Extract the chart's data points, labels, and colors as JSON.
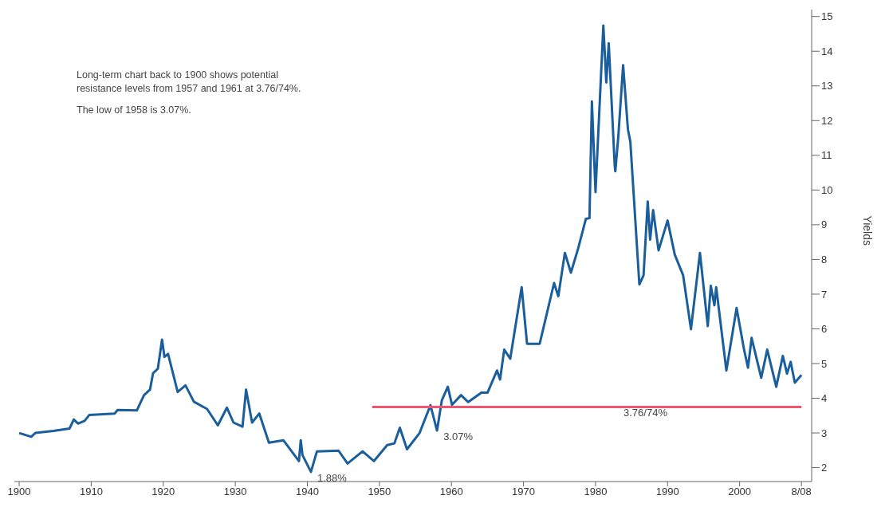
{
  "chart_data": {
    "type": "line",
    "ylabel": "Yields",
    "annotations": [
      "Long-term chart back to 1900 shows potential\nresistance levels from 1957 and 1961 at 3.76/74%.",
      "The low of 1958 is 3.07%.",
      {
        "text": "1.88%",
        "x": "1940-07",
        "y": 1.88
      },
      {
        "text": "3.07%",
        "x": "1958-01",
        "y": 3.07
      },
      {
        "text": "3.76/74%",
        "x": "1983-01",
        "y": 3.75
      }
    ],
    "series": [
      {
        "color": "#1a5e9c",
        "x": [
          "1900-01",
          "1901-09",
          "1902-04",
          "1904-10",
          "1907-01",
          "1907-08",
          "1908-03",
          "1909-02",
          "1909-10",
          "1913-04",
          "1913-09",
          "1916-05",
          "1917-05",
          "1918-03",
          "1918-08",
          "1919-04",
          "1919-11",
          "1920-03",
          "1920-09",
          "1922-01",
          "1923-02",
          "1924-04",
          "1926-02",
          "1927-08",
          "1928-11",
          "1929-10",
          "1931-01",
          "1931-07",
          "1932-05",
          "1933-05",
          "1934-09",
          "1936-09",
          "1938-11",
          "1939-02",
          "1939-05",
          "1940-07",
          "1941-05",
          "1944-05",
          "1945-08",
          "1947-09",
          "1949-04",
          "1951-02",
          "1952-02",
          "1952-11",
          "1953-11",
          "1955-08",
          "1957-02",
          "1958-01",
          "1958-09",
          "1959-07",
          "1960-02",
          "1961-05",
          "1962-05",
          "1964-03",
          "1965-01",
          "1966-05",
          "1966-10",
          "1967-05",
          "1968-03",
          "1969-10",
          "1970-07",
          "1972-04",
          "1974-04",
          "1974-11",
          "1975-10",
          "1976-08",
          "1977-08",
          "1978-09",
          "1979-03",
          "1979-07",
          "1980-01",
          "1981-02",
          "1981-07",
          "1981-11",
          "1982-09",
          "1982-10",
          "1983-03",
          "1983-11",
          "1984-07",
          "1984-11",
          "1986-02",
          "1986-09",
          "1987-04",
          "1987-08",
          "1988-01",
          "1988-10",
          "1990-01",
          "1991-01",
          "1992-03",
          "1993-04",
          "1994-07",
          "1995-08",
          "1996-01",
          "1996-07",
          "1996-10",
          "1998-03",
          "1999-08",
          "2000-08",
          "2001-03",
          "2001-09",
          "2003-01",
          "2003-11",
          "2005-02",
          "2006-01",
          "2006-08",
          "2007-02",
          "2007-09",
          "2008-08"
        ],
        "values": [
          3.0,
          2.89,
          3.0,
          3.06,
          3.13,
          3.39,
          3.27,
          3.35,
          3.52,
          3.56,
          3.66,
          3.65,
          4.09,
          4.25,
          4.72,
          4.85,
          5.69,
          5.19,
          5.28,
          4.18,
          4.37,
          3.9,
          3.69,
          3.22,
          3.73,
          3.3,
          3.18,
          4.25,
          3.3,
          3.56,
          2.72,
          2.79,
          2.19,
          2.79,
          2.36,
          1.88,
          2.47,
          2.49,
          2.12,
          2.47,
          2.19,
          2.65,
          2.7,
          3.15,
          2.53,
          3.0,
          3.8,
          3.07,
          3.94,
          4.33,
          3.81,
          4.09,
          3.89,
          4.16,
          4.16,
          4.8,
          4.54,
          5.4,
          5.14,
          7.2,
          5.57,
          5.57,
          7.32,
          6.94,
          8.19,
          7.62,
          8.31,
          9.17,
          9.19,
          12.55,
          9.94,
          14.74,
          13.1,
          14.23,
          10.7,
          10.54,
          11.54,
          13.6,
          11.75,
          11.39,
          7.28,
          7.54,
          9.67,
          8.57,
          9.42,
          8.26,
          9.12,
          8.14,
          7.54,
          5.99,
          8.19,
          6.08,
          7.24,
          6.68,
          7.2,
          4.8,
          6.6,
          5.44,
          4.88,
          5.74,
          4.59,
          5.4,
          4.33,
          5.22,
          4.71,
          5.05,
          4.45,
          4.67
        ]
      },
      {
        "color": "#f0546e",
        "x": [
          "1949-01",
          "2008-08"
        ],
        "values": [
          3.75,
          3.75
        ]
      }
    ],
    "xlim": [
      "1899-05",
      "2010-01"
    ],
    "xticks": [
      "1900",
      "1910",
      "1920",
      "1930",
      "1940",
      "1950",
      "1960",
      "1970",
      "1980",
      "1990",
      "2000",
      {
        "value": "2008-08",
        "label": "8/08"
      }
    ],
    "ylim": [
      1.6,
      15.2
    ],
    "yticks": [
      2,
      3,
      4,
      5,
      6,
      7,
      8,
      9,
      10,
      11,
      12,
      13,
      14,
      15
    ],
    "grid": false,
    "legend": false,
    "marker": "none",
    "line_style": "solid"
  }
}
